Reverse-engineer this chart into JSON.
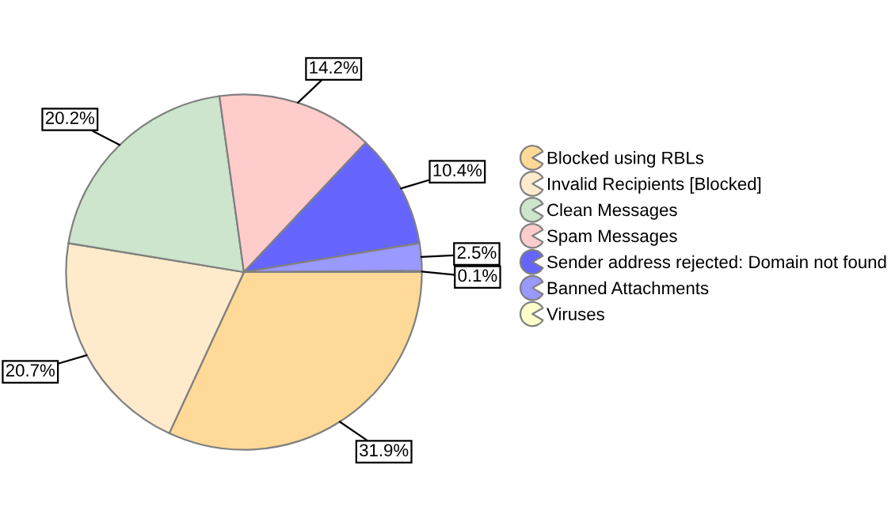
{
  "chart_data": {
    "type": "pie",
    "categories": [
      "Blocked using RBLs",
      "Invalid Recipients [Blocked]",
      "Clean Messages",
      "Spam Messages",
      "Sender address rejected: Domain not found",
      "Banned Attachments",
      "Viruses"
    ],
    "values": [
      31.9,
      20.7,
      20.2,
      14.2,
      10.4,
      2.5,
      0.1
    ],
    "colors": [
      "#ffd997",
      "#ffebcc",
      "#cce5cc",
      "#ffcccc",
      "#6666ff",
      "#9999ff",
      "#ffffcc"
    ],
    "value_labels": [
      "31.9%",
      "20.7%",
      "20.2%",
      "14.2%",
      "10.4%",
      "2.5%",
      "0.1%"
    ],
    "legend": "right"
  }
}
